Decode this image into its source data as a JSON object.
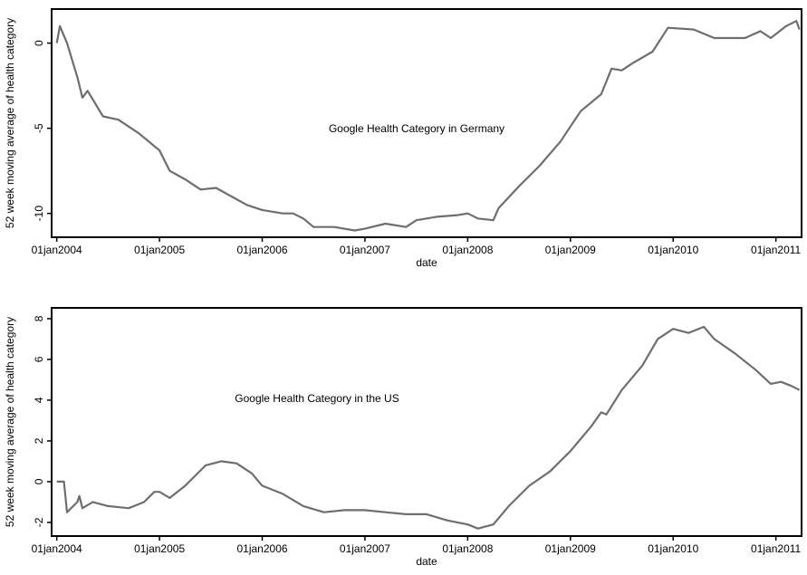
{
  "chart_data": [
    {
      "type": "line",
      "annotation": "Google Health Category in Germany",
      "x_label": "date",
      "y_label": "52 week moving average of health category",
      "xlim": [
        2003.95,
        2011.25
      ],
      "xticks": [
        {
          "value": 2004,
          "label": "01jan2004"
        },
        {
          "value": 2005,
          "label": "01jan2005"
        },
        {
          "value": 2006,
          "label": "01jan2006"
        },
        {
          "value": 2007,
          "label": "01jan2007"
        },
        {
          "value": 2008,
          "label": "01jan2008"
        },
        {
          "value": 2009,
          "label": "01jan2009"
        },
        {
          "value": 2010,
          "label": "01jan2010"
        },
        {
          "value": 2011,
          "label": "01jan2011"
        }
      ],
      "ylim": [
        -11.4,
        2
      ],
      "yticks": [
        -10,
        -5,
        0
      ],
      "color": "#6e6e6e",
      "x": [
        2004.0,
        2004.03,
        2004.1,
        2004.2,
        2004.25,
        2004.3,
        2004.45,
        2004.6,
        2004.8,
        2005.0,
        2005.1,
        2005.25,
        2005.4,
        2005.55,
        2005.7,
        2005.85,
        2006.0,
        2006.2,
        2006.3,
        2006.4,
        2006.5,
        2006.7,
        2006.9,
        2007.0,
        2007.2,
        2007.4,
        2007.5,
        2007.7,
        2007.9,
        2008.0,
        2008.1,
        2008.25,
        2008.3,
        2008.5,
        2008.7,
        2008.9,
        2009.1,
        2009.3,
        2009.4,
        2009.5,
        2009.6,
        2009.8,
        2009.95,
        2010.2,
        2010.4,
        2010.7,
        2010.85,
        2010.95,
        2011.1,
        2011.2,
        2011.23
      ],
      "values": [
        0,
        1.0,
        0,
        -2,
        -3.2,
        -2.8,
        -4.3,
        -4.5,
        -5.3,
        -6.3,
        -7.5,
        -8.0,
        -8.6,
        -8.5,
        -9.0,
        -9.5,
        -9.8,
        -10.0,
        -10.0,
        -10.3,
        -10.8,
        -10.8,
        -11.0,
        -10.9,
        -10.6,
        -10.8,
        -10.4,
        -10.2,
        -10.1,
        -10.0,
        -10.3,
        -10.4,
        -9.7,
        -8.4,
        -7.2,
        -5.8,
        -4.0,
        -3.0,
        -1.5,
        -1.6,
        -1.2,
        -0.5,
        0.9,
        0.8,
        0.3,
        0.3,
        0.7,
        0.3,
        1.0,
        1.3,
        0.8
      ]
    },
    {
      "type": "line",
      "annotation": "Google Health Category in the US",
      "x_label": "date",
      "y_label": "52 week moving average of health category",
      "xlim": [
        2003.95,
        2011.25
      ],
      "xticks": [
        {
          "value": 2004,
          "label": "01jan2004"
        },
        {
          "value": 2005,
          "label": "01jan2005"
        },
        {
          "value": 2006,
          "label": "01jan2006"
        },
        {
          "value": 2007,
          "label": "01jan2007"
        },
        {
          "value": 2008,
          "label": "01jan2008"
        },
        {
          "value": 2009,
          "label": "01jan2009"
        },
        {
          "value": 2010,
          "label": "01jan2010"
        },
        {
          "value": 2011,
          "label": "01jan2011"
        }
      ],
      "ylim": [
        -2.67,
        8.53
      ],
      "yticks": [
        -2,
        0,
        2,
        4,
        6,
        8
      ],
      "color": "#6e6e6e",
      "x": [
        2004.0,
        2004.07,
        2004.1,
        2004.2,
        2004.22,
        2004.25,
        2004.35,
        2004.5,
        2004.7,
        2004.85,
        2004.95,
        2005.0,
        2005.1,
        2005.25,
        2005.45,
        2005.6,
        2005.75,
        2005.9,
        2006.0,
        2006.2,
        2006.4,
        2006.6,
        2006.8,
        2007.0,
        2007.2,
        2007.4,
        2007.6,
        2007.8,
        2008.0,
        2008.1,
        2008.25,
        2008.4,
        2008.6,
        2008.8,
        2009.0,
        2009.2,
        2009.3,
        2009.35,
        2009.5,
        2009.7,
        2009.85,
        2010.0,
        2010.15,
        2010.3,
        2010.4,
        2010.6,
        2010.8,
        2010.95,
        2011.05,
        2011.15,
        2011.23
      ],
      "values": [
        0,
        0,
        -1.5,
        -1.0,
        -0.7,
        -1.3,
        -1.0,
        -1.2,
        -1.3,
        -1.0,
        -0.5,
        -0.5,
        -0.8,
        -0.2,
        0.8,
        1.0,
        0.9,
        0.4,
        -0.2,
        -0.6,
        -1.2,
        -1.5,
        -1.4,
        -1.4,
        -1.5,
        -1.6,
        -1.6,
        -1.9,
        -2.1,
        -2.3,
        -2.1,
        -1.2,
        -0.2,
        0.5,
        1.5,
        2.7,
        3.4,
        3.3,
        4.5,
        5.7,
        7.0,
        7.5,
        7.3,
        7.6,
        7.0,
        6.3,
        5.5,
        4.8,
        4.9,
        4.7,
        4.5
      ]
    }
  ]
}
